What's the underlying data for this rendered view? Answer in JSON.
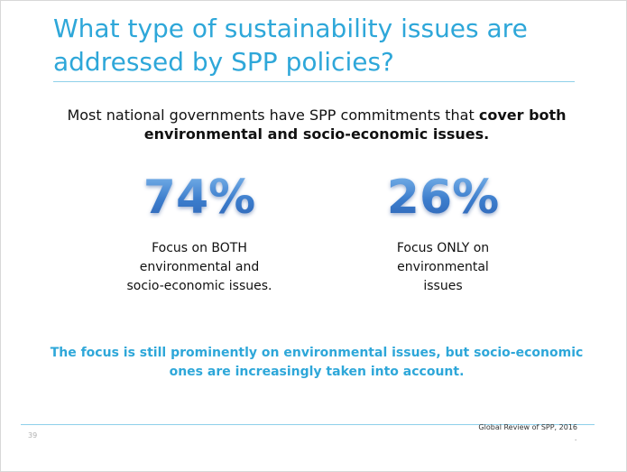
{
  "slide": {
    "title": "What type of sustainability issues are addressed by SPP policies?",
    "intro_plain": "Most national governments have SPP commitments that ",
    "intro_bold": "cover both environmental and socio-economic issues.",
    "stats": [
      {
        "value": "74%",
        "description_lines": [
          "Focus on BOTH",
          "environmental and",
          "socio-economic issues."
        ]
      },
      {
        "value": "26%",
        "description_lines": [
          "Focus ONLY on",
          "environmental",
          "issues"
        ]
      }
    ],
    "note": "The focus is still prominently on environmental issues, but socio-economic ones are increasingly taken into account.",
    "page_number": "39",
    "source": "Global Review of SPP, 2016",
    "trailing_mark": "."
  },
  "colors": {
    "accent": "#2ea7d9",
    "stat_blue": "#3b7ccc",
    "text": "#111111",
    "rule": "#8fd0ea"
  }
}
